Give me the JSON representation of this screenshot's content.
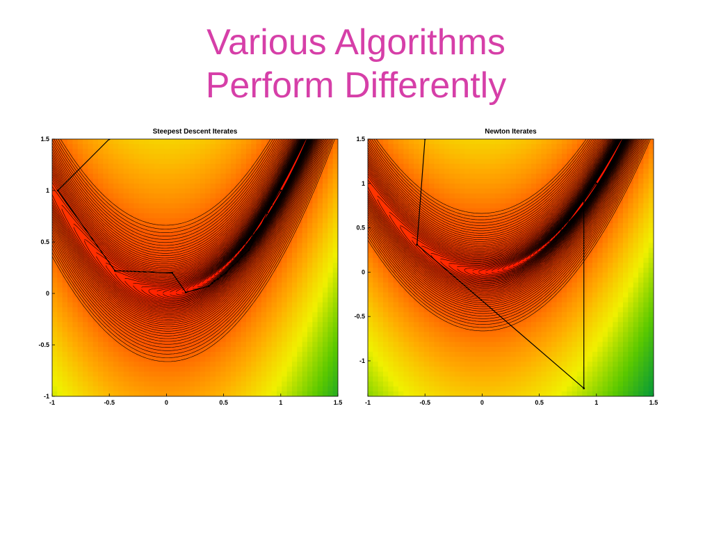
{
  "slide": {
    "title_line1": "Various Algorithms",
    "title_line2": "Perform Differently",
    "title_color": "#d63fa8"
  },
  "chart_data": [
    {
      "type": "contour",
      "title": "Steepest Descent Iterates",
      "xlabel": "",
      "ylabel": "",
      "xlim": [
        -1,
        1.5
      ],
      "ylim": [
        -1,
        1.5
      ],
      "x_ticks": [
        -1,
        -0.5,
        0,
        0.5,
        1,
        1.5
      ],
      "y_ticks": [
        -1,
        -0.5,
        0,
        0.5,
        1,
        1.5
      ],
      "x_tick_labels": [
        "-1",
        "-0.5",
        "0",
        "0.5",
        "1",
        "1.5"
      ],
      "y_tick_labels": [
        "-1",
        "-0.5",
        "0",
        "0.5",
        "1",
        "1.5"
      ],
      "colormap": "red-yellow-green-blue (low to high)",
      "iterates": {
        "x": [
          -0.5,
          -0.95,
          -0.45,
          0.05,
          0.17,
          0.37,
          0.4,
          0.42,
          0.45,
          0.48,
          0.52,
          0.55,
          0.58,
          0.62,
          0.66,
          0.72,
          0.88,
          0.92,
          1.0
        ],
        "y": [
          1.5,
          1.0,
          0.22,
          0.2,
          0.01,
          0.07,
          0.1,
          0.12,
          0.14,
          0.17,
          0.2,
          0.24,
          0.27,
          0.31,
          0.36,
          0.42,
          0.78,
          0.86,
          1.0
        ]
      }
    },
    {
      "type": "contour",
      "title": "Newton Iterates",
      "xlabel": "",
      "ylabel": "",
      "xlim": [
        -1,
        1.5
      ],
      "ylim": [
        -1.4,
        1.5
      ],
      "x_ticks": [
        -1,
        -0.5,
        0,
        0.5,
        1,
        1.5
      ],
      "y_ticks": [
        -1,
        -0.5,
        0,
        0.5,
        1,
        1.5
      ],
      "x_tick_labels": [
        "-1",
        "-0.5",
        "0",
        "0.5",
        "1",
        "1.5"
      ],
      "y_tick_labels": [
        "-1",
        "-0.5",
        "0",
        "0.5",
        "1",
        "1.5"
      ],
      "colormap": "red-yellow-green-blue (low to high)",
      "iterates": {
        "x": [
          -0.5,
          -0.57,
          0.89,
          0.89,
          1.0
        ],
        "y": [
          1.5,
          0.31,
          -1.31,
          0.8,
          1.0
        ]
      }
    }
  ]
}
